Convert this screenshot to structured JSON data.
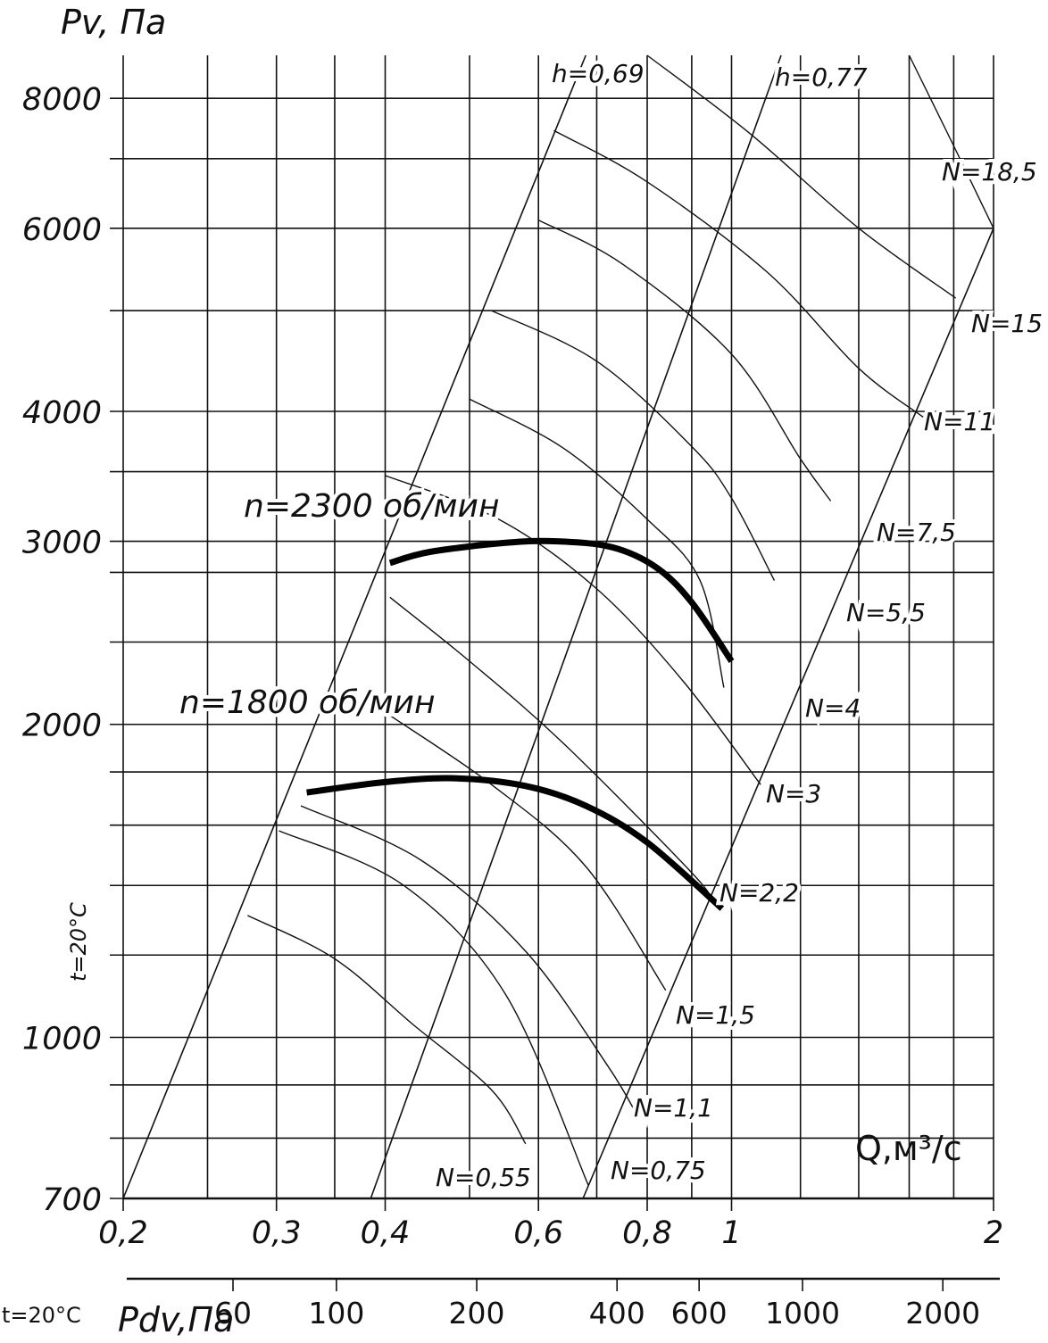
{
  "chart_data": {
    "type": "line",
    "title": "",
    "xlabel": "Q,м³/с",
    "ylabel": "Pv, Па",
    "x_scale": "log",
    "y_scale": "log",
    "xlim": [
      0.2,
      2.0
    ],
    "ylim": [
      700,
      8800
    ],
    "grid": true,
    "x_ticks": [
      {
        "value": 0.2,
        "label": "0,2"
      },
      {
        "value": 0.3,
        "label": "0,3"
      },
      {
        "value": 0.4,
        "label": "0,4"
      },
      {
        "value": 0.6,
        "label": "0,6"
      },
      {
        "value": 0.8,
        "label": "0,8"
      },
      {
        "value": 1.0,
        "label": "1"
      },
      {
        "value": 2.0,
        "label": "2"
      }
    ],
    "x_grid": [
      0.2,
      0.25,
      0.3,
      0.35,
      0.4,
      0.5,
      0.6,
      0.7,
      0.8,
      0.9,
      1.0,
      1.2,
      1.4,
      1.6,
      1.8,
      2.0
    ],
    "y_ticks": [
      {
        "value": 700,
        "label": "700"
      },
      {
        "value": 1000,
        "label": "1000"
      },
      {
        "value": 2000,
        "label": "2000"
      },
      {
        "value": 3000,
        "label": "3000"
      },
      {
        "value": 4000,
        "label": "4000"
      },
      {
        "value": 6000,
        "label": "6000"
      },
      {
        "value": 8000,
        "label": "8000"
      }
    ],
    "y_grid": [
      700,
      800,
      900,
      1000,
      1200,
      1400,
      1600,
      1800,
      2000,
      2400,
      2800,
      3000,
      3500,
      4000,
      5000,
      6000,
      7000,
      8000
    ],
    "series": [
      {
        "name": "n=2300 об/мин",
        "points": [
          [
            0.405,
            2860
          ],
          [
            0.45,
            2930
          ],
          [
            0.55,
            2990
          ],
          [
            0.63,
            3000
          ],
          [
            0.73,
            2960
          ],
          [
            0.82,
            2830
          ],
          [
            0.9,
            2620
          ],
          [
            1.0,
            2300
          ]
        ]
      },
      {
        "name": "n=1800 об/мин",
        "points": [
          [
            0.325,
            1720
          ],
          [
            0.4,
            1760
          ],
          [
            0.48,
            1775
          ],
          [
            0.58,
            1745
          ],
          [
            0.68,
            1670
          ],
          [
            0.8,
            1540
          ],
          [
            0.975,
            1330
          ]
        ]
      }
    ],
    "efficiency_lines": [
      {
        "label": "h=0,69",
        "points": [
          [
            0.2,
            700
          ],
          [
            0.68,
            8800
          ]
        ]
      },
      {
        "label": "h=0,77",
        "points": [
          [
            0.385,
            700
          ],
          [
            1.14,
            8800
          ]
        ]
      }
    ],
    "other_lines": [
      {
        "points": [
          [
            0.675,
            700
          ],
          [
            2.0,
            6000
          ]
        ]
      }
    ],
    "power_curves": [
      {
        "label": "N=0,55",
        "points": [
          [
            0.278,
            1310
          ],
          [
            0.35,
            1190
          ],
          [
            0.43,
            1030
          ],
          [
            0.53,
            890
          ],
          [
            0.58,
            790
          ]
        ]
      },
      {
        "label": "N=0,75",
        "points": [
          [
            0.302,
            1580
          ],
          [
            0.42,
            1400
          ],
          [
            0.55,
            1100
          ],
          [
            0.685,
            720
          ]
        ]
      },
      {
        "label": "N=1,1",
        "points": [
          [
            0.32,
            1670
          ],
          [
            0.44,
            1480
          ],
          [
            0.58,
            1210
          ],
          [
            0.72,
            940
          ],
          [
            0.78,
            840
          ]
        ]
      },
      {
        "label": "N=1,5",
        "points": [
          [
            0.405,
            2040
          ],
          [
            0.53,
            1750
          ],
          [
            0.68,
            1460
          ],
          [
            0.84,
            1110
          ]
        ]
      },
      {
        "label": "N=2,2",
        "points": [
          [
            0.405,
            2650
          ],
          [
            0.5,
            2300
          ],
          [
            0.64,
            1920
          ],
          [
            0.9,
            1440
          ],
          [
            0.95,
            1350
          ]
        ]
      },
      {
        "label": "N=3",
        "points": [
          [
            0.4,
            3470
          ],
          [
            0.54,
            3150
          ],
          [
            0.7,
            2700
          ],
          [
            0.88,
            2200
          ],
          [
            1.08,
            1750
          ]
        ]
      },
      {
        "label": "N=4",
        "points": [
          [
            0.5,
            4110
          ],
          [
            0.64,
            3690
          ],
          [
            0.8,
            3150
          ],
          [
            0.92,
            2750
          ],
          [
            0.98,
            2170
          ]
        ]
      },
      {
        "label": "N=5,5",
        "points": [
          [
            0.53,
            5000
          ],
          [
            0.7,
            4470
          ],
          [
            0.9,
            3700
          ],
          [
            1.0,
            3300
          ],
          [
            1.12,
            2750
          ]
        ]
      },
      {
        "label": "N=7,5",
        "points": [
          [
            0.6,
            6110
          ],
          [
            0.75,
            5540
          ],
          [
            1.0,
            4540
          ],
          [
            1.2,
            3600
          ],
          [
            1.3,
            3280
          ]
        ]
      },
      {
        "label": "N=11",
        "points": [
          [
            0.625,
            7450
          ],
          [
            0.8,
            6650
          ],
          [
            1.1,
            5440
          ],
          [
            1.4,
            4400
          ],
          [
            1.66,
            3950
          ]
        ]
      },
      {
        "label": "N=15",
        "points": [
          [
            0.8,
            8800
          ],
          [
            1.05,
            7400
          ],
          [
            1.4,
            6000
          ],
          [
            1.81,
            5140
          ]
        ]
      },
      {
        "label": "N=18,5",
        "points": [
          [
            1.6,
            8800
          ],
          [
            1.8,
            7200
          ],
          [
            2.0,
            6000
          ]
        ]
      }
    ],
    "annotations": [
      "t=20°C"
    ],
    "secondary_axis": {
      "label": "Pdv,Па",
      "scale": "log",
      "range": [
        35.5,
        2650
      ],
      "ticks": [
        {
          "value": 60,
          "label": "60"
        },
        {
          "value": 100,
          "label": "100"
        },
        {
          "value": 200,
          "label": "200"
        },
        {
          "value": 400,
          "label": "400"
        },
        {
          "value": 600,
          "label": "600"
        },
        {
          "value": 1000,
          "label": "1000"
        },
        {
          "value": 2000,
          "label": "2000"
        }
      ],
      "annotation": "t=20°C"
    }
  }
}
